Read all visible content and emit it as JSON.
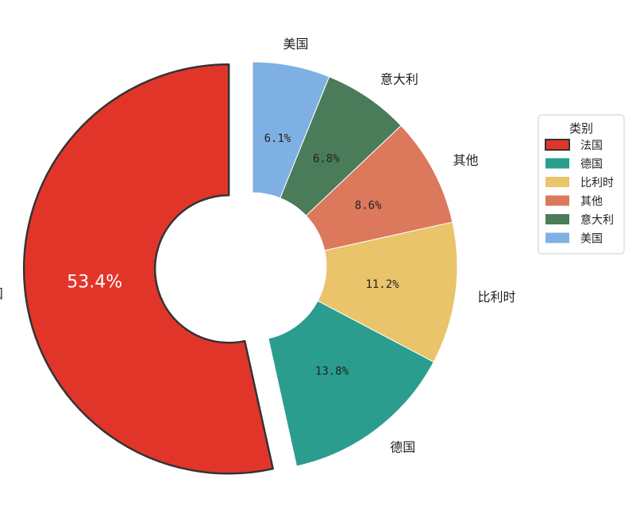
{
  "chart_data": {
    "type": "pie",
    "donut": true,
    "start_angle_deg": 90,
    "direction": "counterclockwise",
    "exploded": [
      "法国"
    ],
    "categories": [
      "法国",
      "德国",
      "比利时",
      "其他",
      "意大利",
      "美国"
    ],
    "values": [
      53.4,
      13.8,
      11.2,
      8.6,
      6.8,
      6.1
    ],
    "value_labels": [
      "53.4%",
      "13.8%",
      "11.2%",
      "8.6%",
      "6.8%",
      "6.1%"
    ],
    "colors": [
      "#e2352a",
      "#2a9d8f",
      "#e9c46a",
      "#dc785c",
      "#4a7c59",
      "#7fb0e3"
    ],
    "legend": {
      "title": "类别",
      "placement": "right",
      "entries": [
        "法国",
        "德国",
        "比利时",
        "其他",
        "意大利",
        "美国"
      ]
    }
  }
}
